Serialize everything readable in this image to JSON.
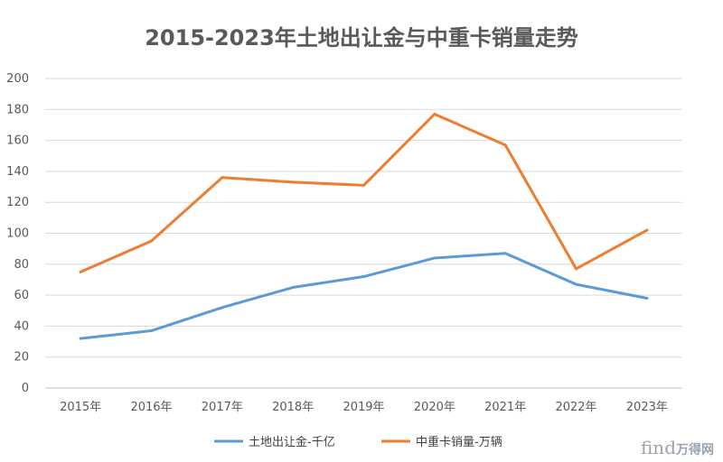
{
  "chart_data": {
    "type": "line",
    "title": "2015-2023年土地出让金与中重卡销量走势",
    "categories": [
      "2015年",
      "2016年",
      "2017年",
      "2018年",
      "2019年",
      "2020年",
      "2021年",
      "2022年",
      "2023年"
    ],
    "y_ticks": [
      "0",
      "20",
      "40",
      "60",
      "80",
      "100",
      "120",
      "140",
      "160",
      "180",
      "200"
    ],
    "ylim": [
      0,
      200
    ],
    "grid": true,
    "legend_position": "bottom",
    "series": [
      {
        "name": "土地出让金-千亿",
        "color": "#5b9bd5",
        "values": [
          32,
          37,
          52,
          65,
          72,
          84,
          87,
          67,
          58
        ]
      },
      {
        "name": "中重卡销量-万辆",
        "color": "#ed7d31",
        "values": [
          75,
          95,
          136,
          133,
          131,
          177,
          157,
          77,
          102
        ]
      }
    ]
  },
  "watermark": {
    "brand": "find",
    "cn": "万得网"
  }
}
